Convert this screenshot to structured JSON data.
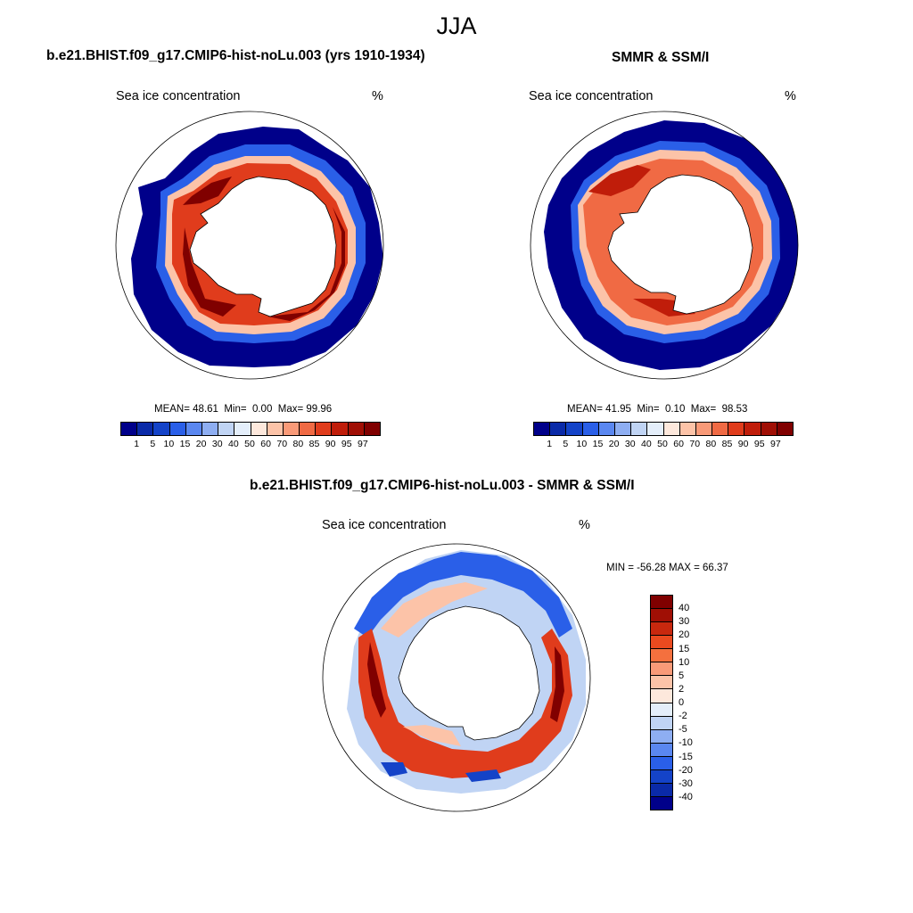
{
  "figure_title": "JJA",
  "panels": [
    {
      "title": "b.e21.BHIST.f09_g17.CMIP6-hist-noLu.003 (yrs 1910-1934)",
      "variable": "Sea ice concentration",
      "units": "%",
      "stats": {
        "mean_label": "MEAN=",
        "mean": "48.61",
        "min_label": "Min=",
        "min": "0.00",
        "max_label": "Max=",
        "max": "99.96"
      }
    },
    {
      "title": "SMMR & SSM/I",
      "variable": "Sea ice concentration",
      "units": "%",
      "stats": {
        "mean_label": "MEAN=",
        "mean": "41.95",
        "min_label": "Min=",
        "min": "0.10",
        "max_label": "Max=",
        "max": "98.53"
      }
    },
    {
      "title": "b.e21.BHIST.f09_g17.CMIP6-hist-noLu.003 - SMMR & SSM/I",
      "variable": "Sea ice concentration",
      "units": "%",
      "range_text": "MIN = -56.28 MAX =  66.37"
    }
  ],
  "concentration_colorbar": {
    "labels": [
      "1",
      "5",
      "10",
      "15",
      "20",
      "30",
      "40",
      "50",
      "60",
      "70",
      "80",
      "85",
      "90",
      "95",
      "97"
    ],
    "colors": [
      "#00008a",
      "#0a2aa8",
      "#1443c8",
      "#2a5fe8",
      "#5a87f0",
      "#8eaef2",
      "#c0d4f4",
      "#e4eefa",
      "#fde8dc",
      "#fcc3a8",
      "#f99a78",
      "#f06a44",
      "#e03c1c",
      "#c01d0a",
      "#a00f05",
      "#800000"
    ]
  },
  "difference_colorbar": {
    "labels": [
      "40",
      "30",
      "20",
      "15",
      "10",
      "5",
      "2",
      "0",
      "-2",
      "-5",
      "-10",
      "-15",
      "-20",
      "-30",
      "-40"
    ],
    "colors": [
      "#800000",
      "#a00f05",
      "#c8280e",
      "#ea4a1f",
      "#f4703e",
      "#f99a78",
      "#fcc3a8",
      "#fde8dc",
      "#e4eefa",
      "#c0d4f4",
      "#8eaef2",
      "#5a87f0",
      "#2a5fe8",
      "#1443c8",
      "#0a2aa8",
      "#00008a"
    ]
  }
}
